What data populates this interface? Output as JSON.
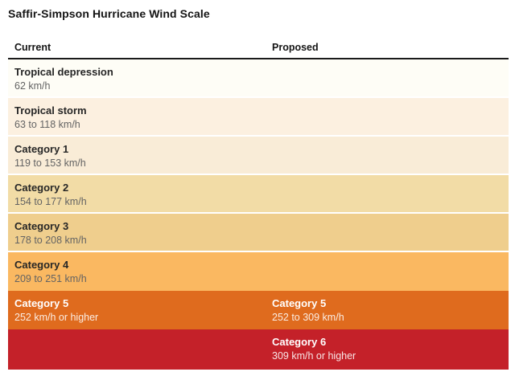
{
  "title": "Saffir-Simpson Hurricane Wind Scale",
  "columns": {
    "current": "Current",
    "proposed": "Proposed"
  },
  "chart_data": {
    "type": "table",
    "title": "Saffir-Simpson Hurricane Wind Scale",
    "columns": [
      "Current",
      "Proposed"
    ],
    "unit": "km/h",
    "rows": [
      {
        "current_label": "Tropical depression",
        "current_value": "62 km/h",
        "proposed_label": "",
        "proposed_value": "",
        "bg": "#fefdf6",
        "text_theme": "dark"
      },
      {
        "current_label": "Tropical storm",
        "current_value": "63 to 118 km/h",
        "proposed_label": "",
        "proposed_value": "",
        "bg": "#fcf0e0",
        "text_theme": "dark"
      },
      {
        "current_label": "Category 1",
        "current_value": "119 to 153 km/h",
        "proposed_label": "",
        "proposed_value": "",
        "bg": "#f9ecd7",
        "text_theme": "dark"
      },
      {
        "current_label": "Category 2",
        "current_value": "154 to 177 km/h",
        "proposed_label": "",
        "proposed_value": "",
        "bg": "#f2dca6",
        "text_theme": "dark"
      },
      {
        "current_label": "Category 3",
        "current_value": "178 to 208 km/h",
        "proposed_label": "",
        "proposed_value": "",
        "bg": "#efce8d",
        "text_theme": "dark"
      },
      {
        "current_label": "Category 4",
        "current_value": "209 to 251 km/h",
        "proposed_label": "",
        "proposed_value": "",
        "bg": "#fab861",
        "text_theme": "dark"
      },
      {
        "current_label": "Category 5",
        "current_value": "252 km/h or higher",
        "proposed_label": "Category 5",
        "proposed_value": "252 to 309 km/h",
        "bg": "#df6b1e",
        "text_theme": "light"
      },
      {
        "current_label": "",
        "current_value": "",
        "proposed_label": "Category 6",
        "proposed_value": "309 km/h or higher",
        "bg": "#c42129",
        "text_theme": "light"
      }
    ]
  },
  "colors": {
    "header_rule": "#1a1a1a",
    "label_dark": "#262626",
    "value_dark": "#636363",
    "label_light": "#ffffff"
  }
}
